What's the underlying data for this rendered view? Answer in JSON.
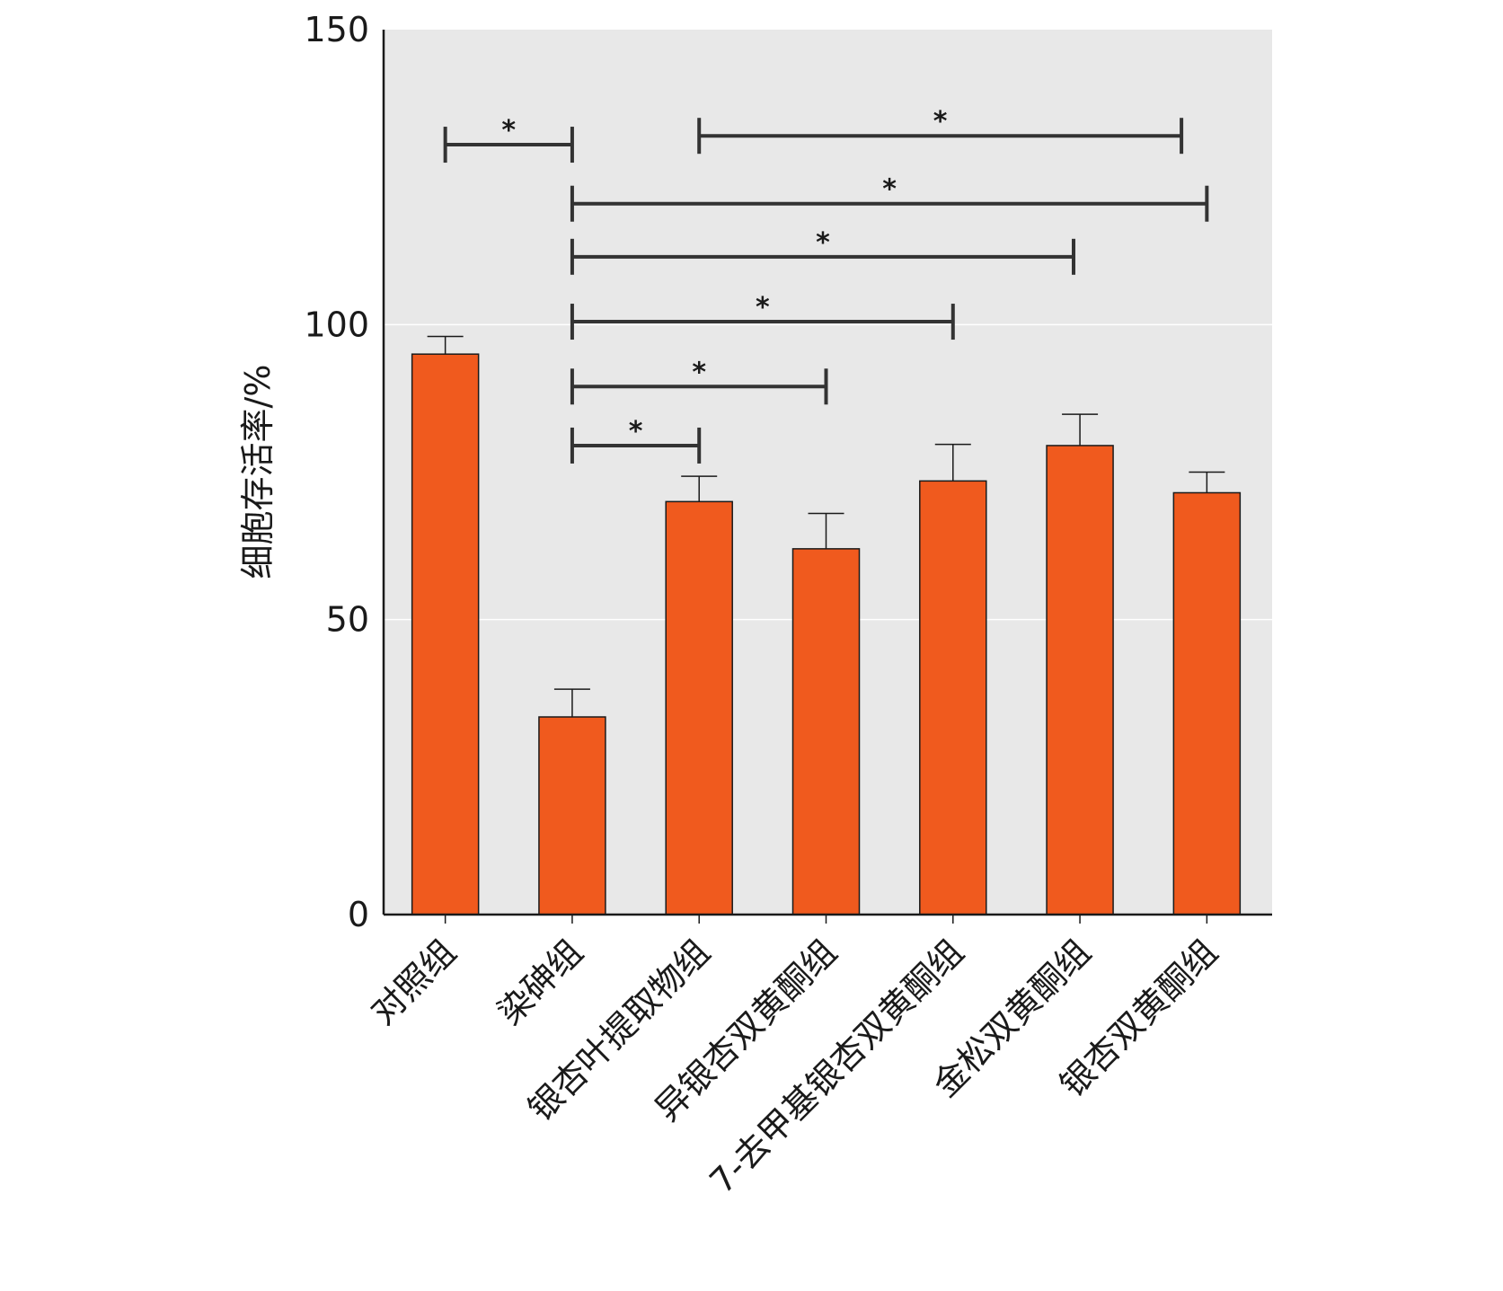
{
  "chart_data": {
    "type": "bar",
    "title": "",
    "xlabel": "",
    "ylabel": "细胞存活率/%",
    "ylim": [
      0,
      150
    ],
    "yticks": [
      0,
      50,
      100,
      150
    ],
    "grid": true,
    "categories": [
      "对照组",
      "染砷组",
      "银杏叶提取物组",
      "异银杏双黄酮组",
      "7-去甲基银杏双黄酮组",
      "金松双黄酮组",
      "银杏双黄酮组"
    ],
    "values": [
      95,
      33.5,
      70,
      62,
      73.5,
      79.5,
      71.5
    ],
    "errors": [
      3,
      4.7,
      4.3,
      6,
      6.2,
      5.3,
      3.5
    ],
    "bar_color": "#f05a1e",
    "plot_background": "#e8e8e8",
    "significance": [
      {
        "from": 0,
        "to": 1,
        "y": 130.5,
        "label": "*"
      },
      {
        "from": 2,
        "to": 5.8,
        "y": 132,
        "label": "*"
      },
      {
        "from": 1,
        "to": 6,
        "y": 120.5,
        "label": "*"
      },
      {
        "from": 1,
        "to": 4.95,
        "y": 111.5,
        "label": "*"
      },
      {
        "from": 1,
        "to": 4,
        "y": 100.5,
        "label": "*"
      },
      {
        "from": 1,
        "to": 3,
        "y": 89.5,
        "label": "*"
      },
      {
        "from": 1,
        "to": 2,
        "y": 79.5,
        "label": "*"
      }
    ]
  }
}
